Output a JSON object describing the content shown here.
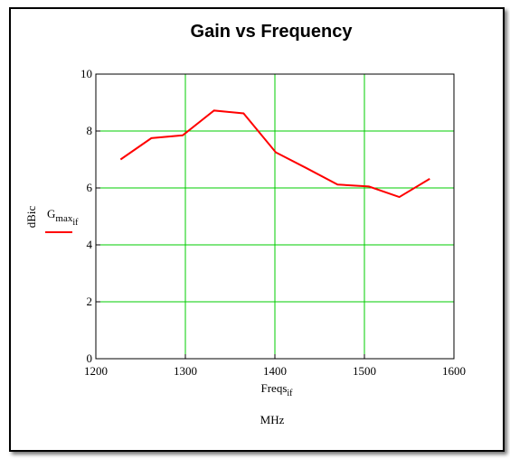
{
  "chart_data": {
    "type": "line",
    "title": "Gain vs Frequency",
    "xlabel_base": "Freqs",
    "xlabel_sub": "if",
    "xlabel_unit": "MHz",
    "ylabel": "dBic",
    "legend": {
      "base": "G",
      "sub1": "max",
      "sub2": "if",
      "placement": "left"
    },
    "xlim": [
      1200,
      1600
    ],
    "ylim": [
      0,
      10
    ],
    "xticks": [
      1200,
      1300,
      1400,
      1500,
      1600
    ],
    "yticks": [
      0,
      2,
      4,
      6,
      8,
      10
    ],
    "grid": true,
    "grid_color": "#00cc00",
    "series": [
      {
        "color": "#ff0000",
        "x": [
          1227.6,
          1262,
          1297,
          1332,
          1365,
          1401,
          1435,
          1470,
          1505,
          1539,
          1573
        ],
        "y": [
          7.0,
          7.75,
          7.85,
          8.72,
          8.62,
          7.25,
          6.7,
          6.12,
          6.05,
          5.68,
          6.32
        ]
      }
    ]
  }
}
